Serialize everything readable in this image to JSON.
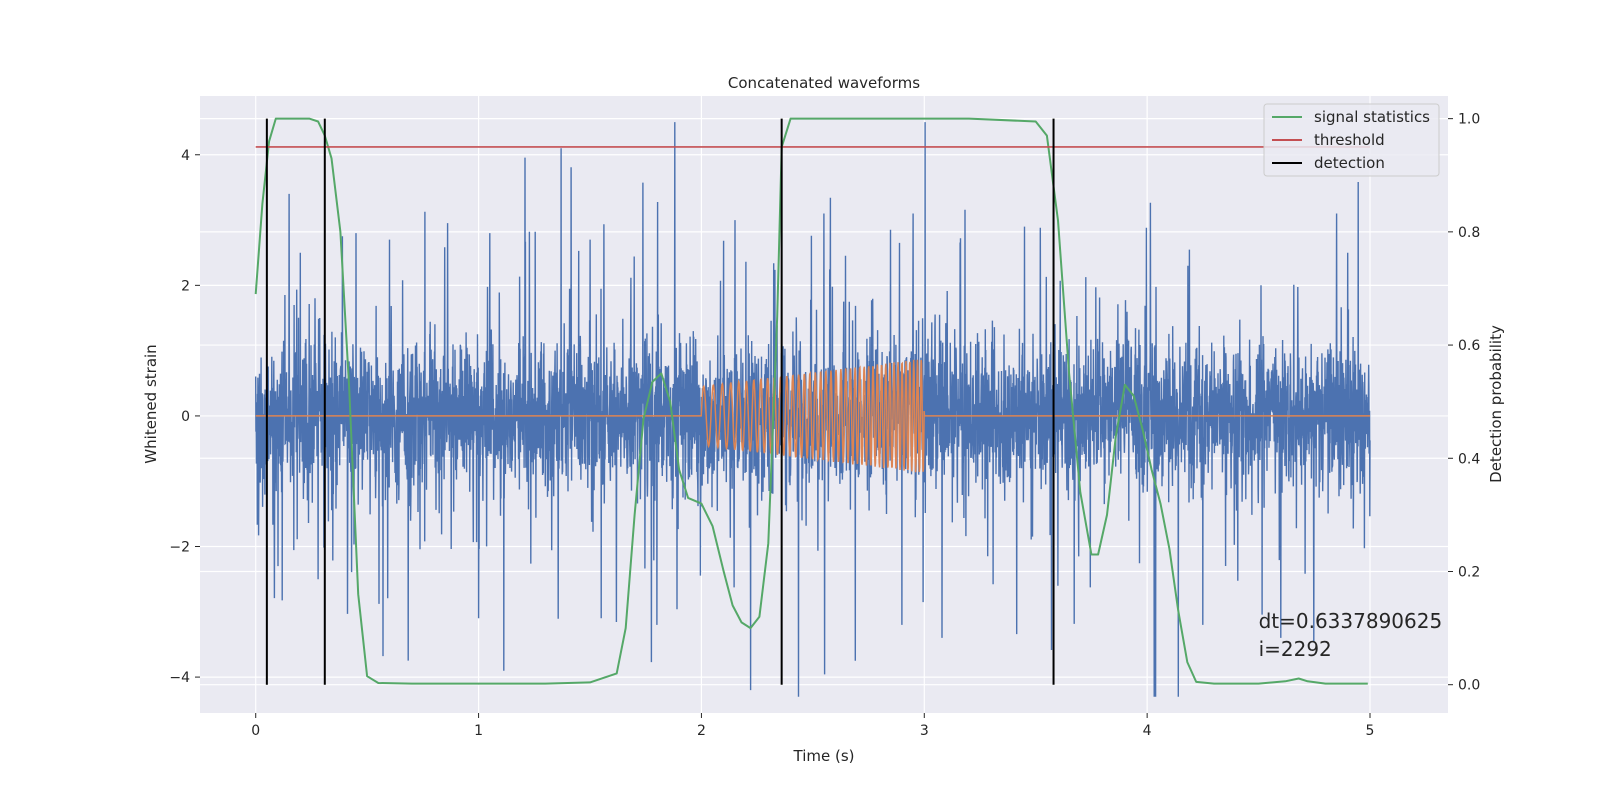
{
  "chart_data": {
    "type": "line",
    "title": "Concatenated waveforms",
    "xlabel": "Time (s)",
    "ylabel_left": "Whitened strain",
    "ylabel_right": "Detection probability",
    "xlim": [
      -0.25,
      5.35
    ],
    "ylim_left": [
      -4.55,
      4.9
    ],
    "ylim_right": [
      -0.05,
      1.04
    ],
    "x_ticks": [
      0,
      1,
      2,
      3,
      4,
      5
    ],
    "y_ticks_left": [
      -4,
      -2,
      0,
      2,
      4
    ],
    "y_ticks_right": [
      0.0,
      0.2,
      0.4,
      0.6,
      0.8,
      1.0
    ],
    "x_tick_labels": [
      "0",
      "1",
      "2",
      "3",
      "4",
      "5"
    ],
    "y_tick_labels_left": [
      "−4",
      "−2",
      "0",
      "2",
      "4"
    ],
    "y_tick_labels_right": [
      "0.0",
      "0.2",
      "0.4",
      "0.6",
      "0.8",
      "1.0"
    ],
    "grid": true,
    "legend_position": "top-right",
    "series": [
      {
        "name": "",
        "kind": "whitened-noise",
        "color": "#4c72b0",
        "axis": "left",
        "x_range": [
          0,
          5
        ],
        "core_amplitude": 0.75,
        "spike_peaks": [
          [
            0.15,
            3.4
          ],
          [
            0.2,
            2.5
          ],
          [
            0.45,
            2.8
          ],
          [
            0.6,
            2.7
          ],
          [
            1.05,
            2.8
          ],
          [
            1.37,
            4.1
          ],
          [
            1.5,
            2.7
          ],
          [
            1.55,
            3.0
          ],
          [
            1.88,
            4.5
          ],
          [
            2.15,
            3.0
          ],
          [
            2.55,
            3.1
          ],
          [
            2.95,
            3.1
          ],
          [
            3.45,
            2.9
          ],
          [
            4.85,
            3.1
          ],
          [
            4.9,
            2.5
          ]
        ],
        "spike_troughs": [
          [
            0.1,
            -2.3
          ],
          [
            0.28,
            -2.5
          ],
          [
            1.0,
            -3.1
          ],
          [
            1.55,
            -3.1
          ],
          [
            1.8,
            -3.2
          ],
          [
            2.22,
            -4.2
          ],
          [
            2.9,
            -3.2
          ],
          [
            3.08,
            -3.4
          ],
          [
            3.6,
            -2.6
          ],
          [
            4.25,
            -3.2
          ],
          [
            4.6,
            -3.4
          ]
        ]
      },
      {
        "name": "",
        "kind": "chirp",
        "color": "#dd8452",
        "axis": "left",
        "x_range": [
          0,
          5
        ],
        "chirp_start": 2.0,
        "chirp_end": 3.0,
        "chirp_amplitude": [
          0.45,
          0.88
        ],
        "chirp_frequency_hz": [
          22,
          60
        ]
      },
      {
        "name": "signal statistics",
        "color": "#55a868",
        "axis": "right",
        "x": [
          0.0,
          0.03,
          0.06,
          0.09,
          0.12,
          0.16,
          0.2,
          0.24,
          0.28,
          0.31,
          0.34,
          0.38,
          0.42,
          0.46,
          0.5,
          0.55,
          0.7,
          1.0,
          1.3,
          1.5,
          1.62,
          1.66,
          1.7,
          1.74,
          1.78,
          1.82,
          1.86,
          1.9,
          1.94,
          2.0,
          2.05,
          2.1,
          2.14,
          2.18,
          2.22,
          2.26,
          2.3,
          2.34,
          2.36,
          2.4,
          2.45,
          2.5,
          2.8,
          3.2,
          3.5,
          3.55,
          3.6,
          3.65,
          3.7,
          3.75,
          3.78,
          3.82,
          3.86,
          3.9,
          3.94,
          3.98,
          4.02,
          4.06,
          4.1,
          4.14,
          4.18,
          4.22,
          4.3,
          4.5,
          4.62,
          4.68,
          4.72,
          4.8,
          4.99
        ],
        "y": [
          0.69,
          0.85,
          0.96,
          1.0,
          1.0,
          1.0,
          1.0,
          1.0,
          0.995,
          0.97,
          0.93,
          0.8,
          0.52,
          0.16,
          0.015,
          0.003,
          0.002,
          0.002,
          0.002,
          0.004,
          0.02,
          0.1,
          0.3,
          0.47,
          0.535,
          0.55,
          0.5,
          0.38,
          0.33,
          0.32,
          0.28,
          0.2,
          0.14,
          0.11,
          0.1,
          0.12,
          0.25,
          0.65,
          0.95,
          1.0,
          1.0,
          1.0,
          1.0,
          1.0,
          0.995,
          0.97,
          0.82,
          0.55,
          0.34,
          0.23,
          0.23,
          0.3,
          0.44,
          0.53,
          0.51,
          0.45,
          0.38,
          0.32,
          0.24,
          0.13,
          0.04,
          0.005,
          0.002,
          0.002,
          0.006,
          0.011,
          0.006,
          0.002,
          0.002
        ]
      },
      {
        "name": "threshold",
        "color": "#c44e52",
        "axis": "right",
        "x": [
          0,
          5
        ],
        "y": [
          0.95,
          0.95
        ]
      },
      {
        "name": "detection",
        "color": "#000000",
        "axis": "right",
        "kind": "vlines",
        "x": [
          0.05,
          0.31,
          2.36,
          3.58
        ],
        "y_range": [
          0.0,
          1.0
        ]
      }
    ],
    "annotation": {
      "x": 4.5,
      "y": -3.25,
      "lines": [
        "dt=0.6337890625",
        " i=2292"
      ]
    },
    "colors": {
      "axes_background": "#eaeaf2",
      "grid": "#ffffff"
    }
  }
}
